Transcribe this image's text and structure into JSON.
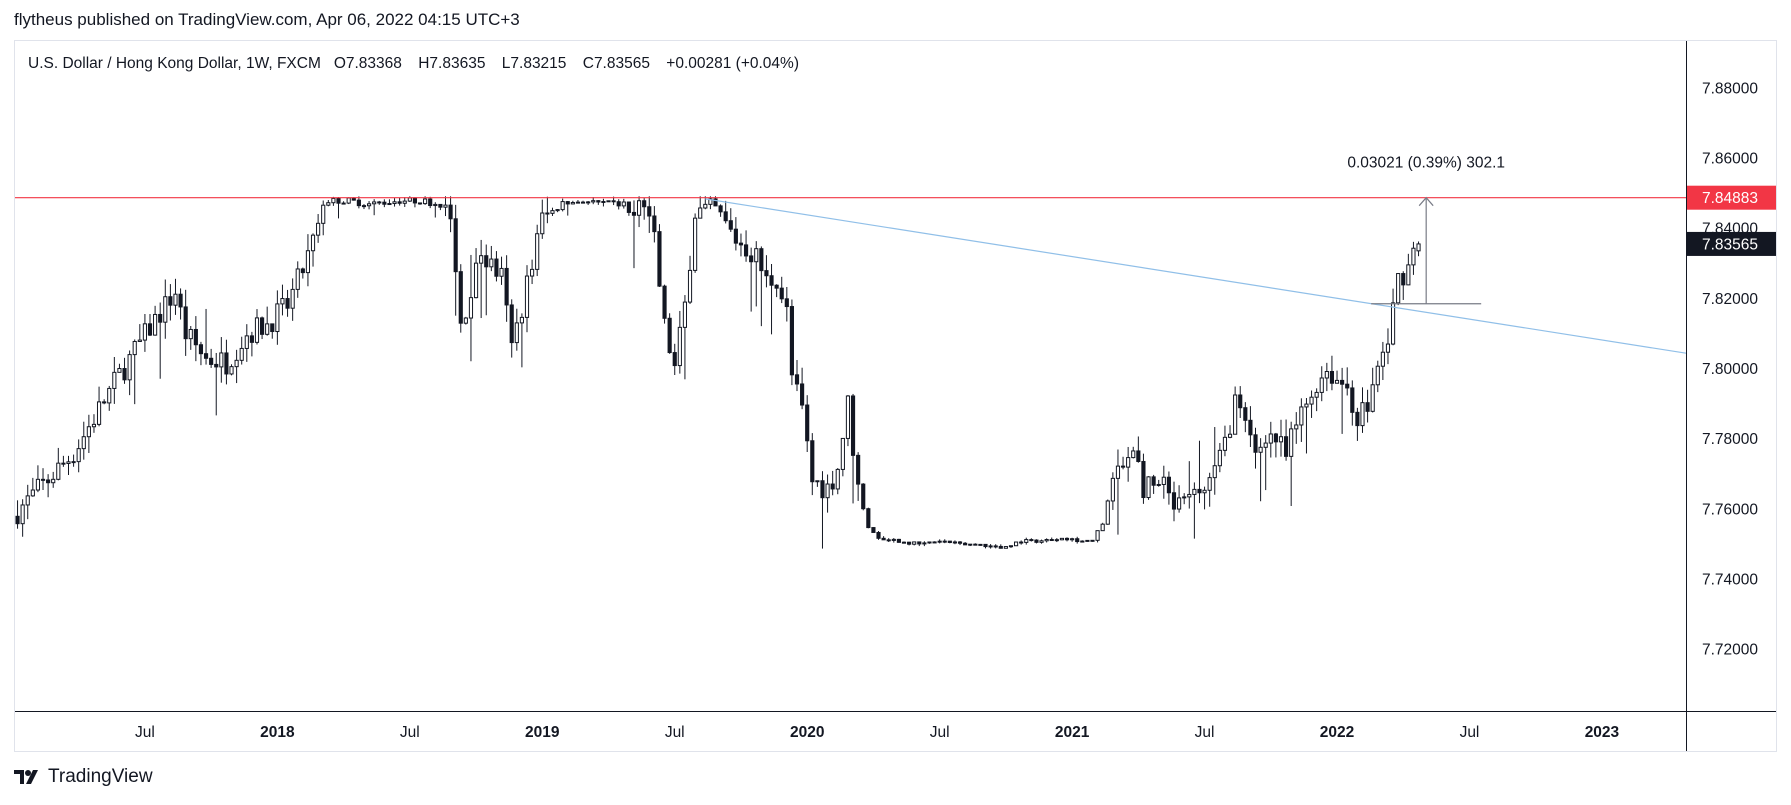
{
  "publish_line": "flytheus published on TradingView.com, Apr 06, 2022 04:15 UTC+3",
  "brand": "TradingView",
  "legend": {
    "symbol": "U.S. Dollar / Hong Kong Dollar, 1W, FXCM",
    "o_key": "O",
    "o": "7.83368",
    "h_key": "H",
    "h": "7.83635",
    "l_key": "L",
    "l": "7.83215",
    "c_key": "C",
    "c": "7.83565",
    "change": "+0.00281 (+0.04%)"
  },
  "chart_data": {
    "type": "candlestick",
    "title": "U.S. Dollar / Hong Kong Dollar, 1W, FXCM",
    "y_ticks": [
      "7.88000",
      "7.86000",
      "7.84000",
      "7.82000",
      "7.80000",
      "7.78000",
      "7.76000",
      "7.74000",
      "7.72000"
    ],
    "y_tick_values": [
      7.88,
      7.86,
      7.84,
      7.82,
      7.8,
      7.78,
      7.76,
      7.74,
      7.72
    ],
    "ylim": [
      7.7025,
      7.8935
    ],
    "x_ticks": [
      "Jul",
      "2018",
      "Jul",
      "2019",
      "Jul",
      "2020",
      "Jul",
      "2021",
      "Jul",
      "2022",
      "Jul",
      "2023"
    ],
    "x_tick_weeks": [
      25,
      51,
      77,
      103,
      129,
      155,
      181,
      207,
      233,
      259,
      285,
      311
    ],
    "xlim_weeks": [
      -0.5,
      327.5
    ],
    "resistance": {
      "value": 7.84883,
      "label": "7.84883",
      "color": "#f23645"
    },
    "last_price": {
      "value": 7.83565,
      "label": "7.83565"
    },
    "trendline": {
      "from": [
        135,
        7.8485
      ],
      "to": [
        327.5,
        7.8045
      ],
      "color": "#90bfe8"
    },
    "measure": {
      "week": 276.5,
      "from": 7.8186,
      "to": 7.84883,
      "label": "0.03021 (0.39%) 302.1"
    },
    "anchors": [
      [
        0,
        7.758
      ],
      [
        12,
        7.776
      ],
      [
        20,
        7.796
      ],
      [
        28,
        7.814
      ],
      [
        32,
        7.822
      ],
      [
        34,
        7.81
      ],
      [
        38,
        7.803
      ],
      [
        42,
        7.802
      ],
      [
        46,
        7.81
      ],
      [
        50,
        7.813
      ],
      [
        54,
        7.818
      ],
      [
        58,
        7.832
      ],
      [
        62,
        7.848
      ],
      [
        66,
        7.848
      ],
      [
        70,
        7.847
      ],
      [
        76,
        7.848
      ],
      [
        80,
        7.848
      ],
      [
        84,
        7.847
      ],
      [
        86,
        7.842
      ],
      [
        88,
        7.812
      ],
      [
        92,
        7.833
      ],
      [
        96,
        7.826
      ],
      [
        98,
        7.806
      ],
      [
        100,
        7.818
      ],
      [
        104,
        7.843
      ],
      [
        108,
        7.847
      ],
      [
        112,
        7.848
      ],
      [
        116,
        7.847
      ],
      [
        120,
        7.847
      ],
      [
        122,
        7.843
      ],
      [
        124,
        7.846
      ],
      [
        126,
        7.836
      ],
      [
        128,
        7.812
      ],
      [
        130,
        7.8
      ],
      [
        132,
        7.818
      ],
      [
        134,
        7.845
      ],
      [
        138,
        7.845
      ],
      [
        142,
        7.837
      ],
      [
        146,
        7.832
      ],
      [
        148,
        7.825
      ],
      [
        150,
        7.826
      ],
      [
        152,
        7.816
      ],
      [
        153,
        7.798
      ],
      [
        155,
        7.788
      ],
      [
        157,
        7.768
      ],
      [
        160,
        7.766
      ],
      [
        162,
        7.772
      ],
      [
        164,
        7.79
      ],
      [
        166,
        7.766
      ],
      [
        168,
        7.755
      ],
      [
        170,
        7.752
      ],
      [
        174,
        7.751
      ],
      [
        178,
        7.75
      ],
      [
        182,
        7.751
      ],
      [
        186,
        7.75
      ],
      [
        190,
        7.75
      ],
      [
        194,
        7.749
      ],
      [
        198,
        7.751
      ],
      [
        202,
        7.751
      ],
      [
        206,
        7.752
      ],
      [
        210,
        7.751
      ],
      [
        212,
        7.751
      ],
      [
        214,
        7.756
      ],
      [
        216,
        7.768
      ],
      [
        218,
        7.772
      ],
      [
        220,
        7.779
      ],
      [
        222,
        7.766
      ],
      [
        226,
        7.766
      ],
      [
        228,
        7.76
      ],
      [
        230,
        7.761
      ],
      [
        232,
        7.764
      ],
      [
        234,
        7.766
      ],
      [
        236,
        7.77
      ],
      [
        238,
        7.779
      ],
      [
        240,
        7.791
      ],
      [
        242,
        7.783
      ],
      [
        244,
        7.776
      ],
      [
        246,
        7.782
      ],
      [
        248,
        7.78
      ],
      [
        250,
        7.775
      ],
      [
        252,
        7.784
      ],
      [
        254,
        7.79
      ],
      [
        256,
        7.796
      ],
      [
        258,
        7.8
      ],
      [
        260,
        7.797
      ],
      [
        262,
        7.795
      ],
      [
        264,
        7.786
      ],
      [
        266,
        7.79
      ],
      [
        268,
        7.8
      ],
      [
        270,
        7.808
      ],
      [
        272,
        7.826
      ],
      [
        274,
        7.829
      ],
      [
        275,
        7.8357
      ]
    ]
  }
}
